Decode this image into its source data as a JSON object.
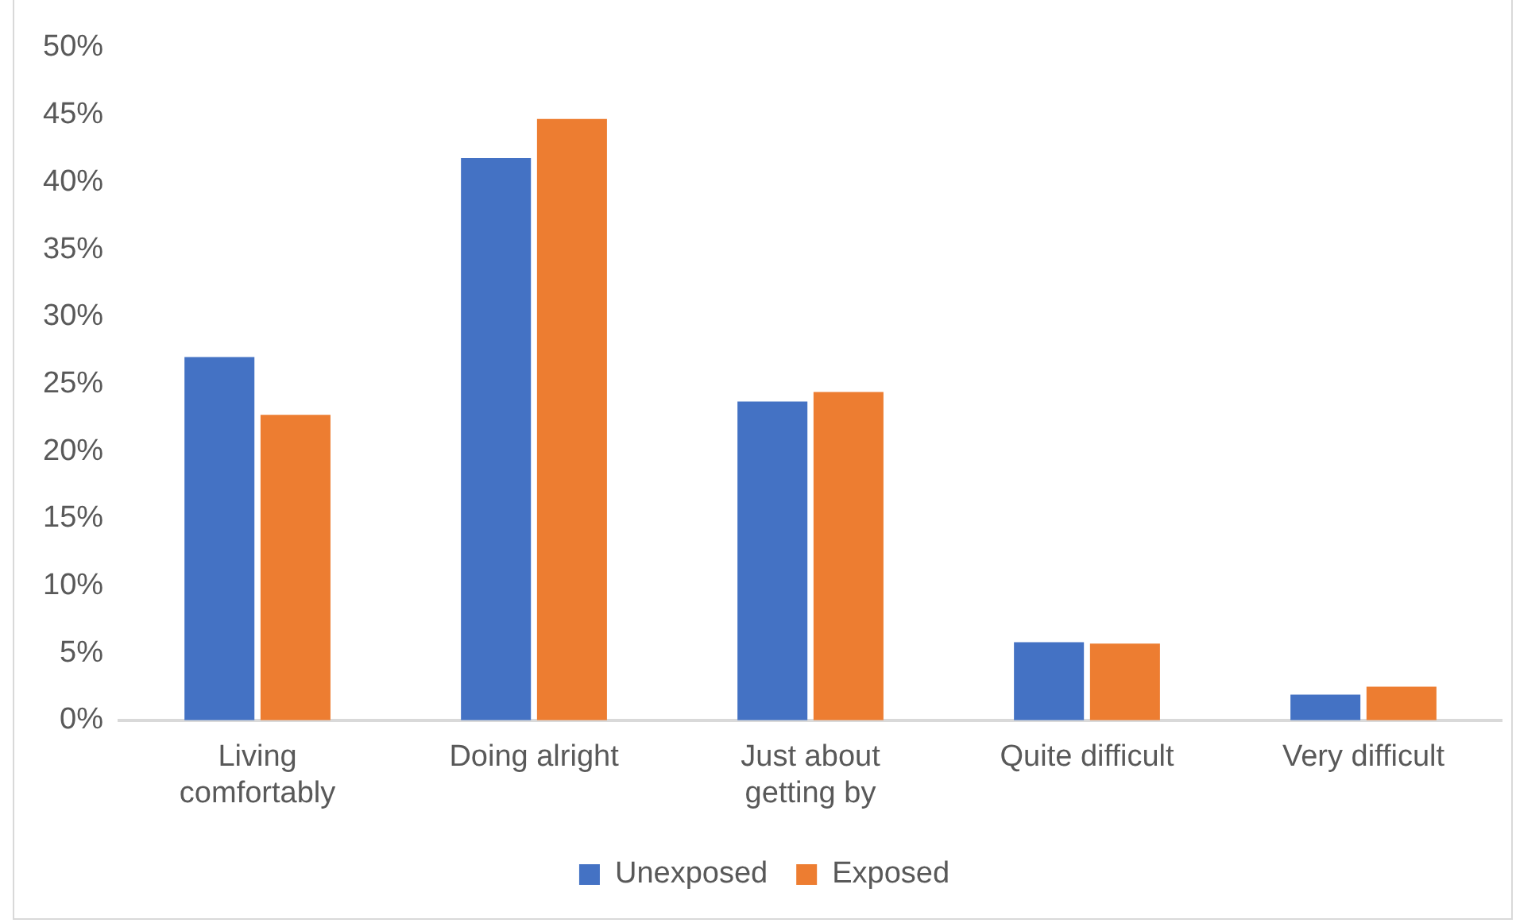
{
  "chart_data": {
    "type": "bar",
    "categories": [
      "Living comfortably",
      "Doing alright",
      "Just about getting by",
      "Quite difficult",
      "Very difficult"
    ],
    "series": [
      {
        "name": "Unexposed",
        "color": "#4472c4",
        "values": [
          27.0,
          41.8,
          23.7,
          5.8,
          1.9
        ]
      },
      {
        "name": "Exposed",
        "color": "#ed7d31",
        "values": [
          22.7,
          44.7,
          24.4,
          5.7,
          2.5
        ]
      }
    ],
    "ylim": [
      0,
      50
    ],
    "yticks": [
      {
        "value": 0,
        "label": "0%"
      },
      {
        "value": 5,
        "label": "5%"
      },
      {
        "value": 10,
        "label": "10%"
      },
      {
        "value": 15,
        "label": "15%"
      },
      {
        "value": 20,
        "label": "20%"
      },
      {
        "value": 25,
        "label": "25%"
      },
      {
        "value": 30,
        "label": "30%"
      },
      {
        "value": 35,
        "label": "35%"
      },
      {
        "value": 40,
        "label": "40%"
      },
      {
        "value": 45,
        "label": "45%"
      },
      {
        "value": 50,
        "label": "50%"
      }
    ],
    "grid": false,
    "legend": "bottom"
  }
}
